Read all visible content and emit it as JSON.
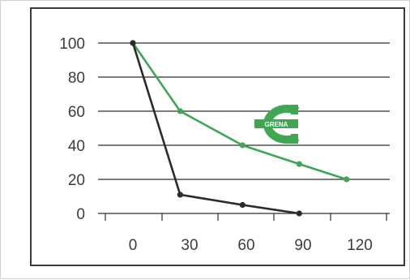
{
  "chart_data": {
    "type": "line",
    "title": "",
    "xlabel": "",
    "ylabel": "",
    "x_ticks": [
      "0",
      "30",
      "60",
      "90",
      "120"
    ],
    "y_ticks": [
      "0",
      "20",
      "40",
      "60",
      "80",
      "100"
    ],
    "xlim": [
      0,
      120
    ],
    "ylim": [
      0,
      100
    ],
    "grid": "horizontal",
    "legend": "none",
    "series": [
      {
        "color": "#3fa653",
        "marker": "circle",
        "x": [
          0,
          25,
          58,
          88,
          113
        ],
        "y": [
          100,
          60,
          40,
          29,
          20
        ]
      },
      {
        "color": "#2b2b2b",
        "marker": "circle",
        "x": [
          0,
          25,
          58,
          88
        ],
        "y": [
          100,
          11,
          5,
          0
        ]
      }
    ],
    "logo": {
      "text": "GRENA",
      "color": "#3fa653"
    }
  }
}
